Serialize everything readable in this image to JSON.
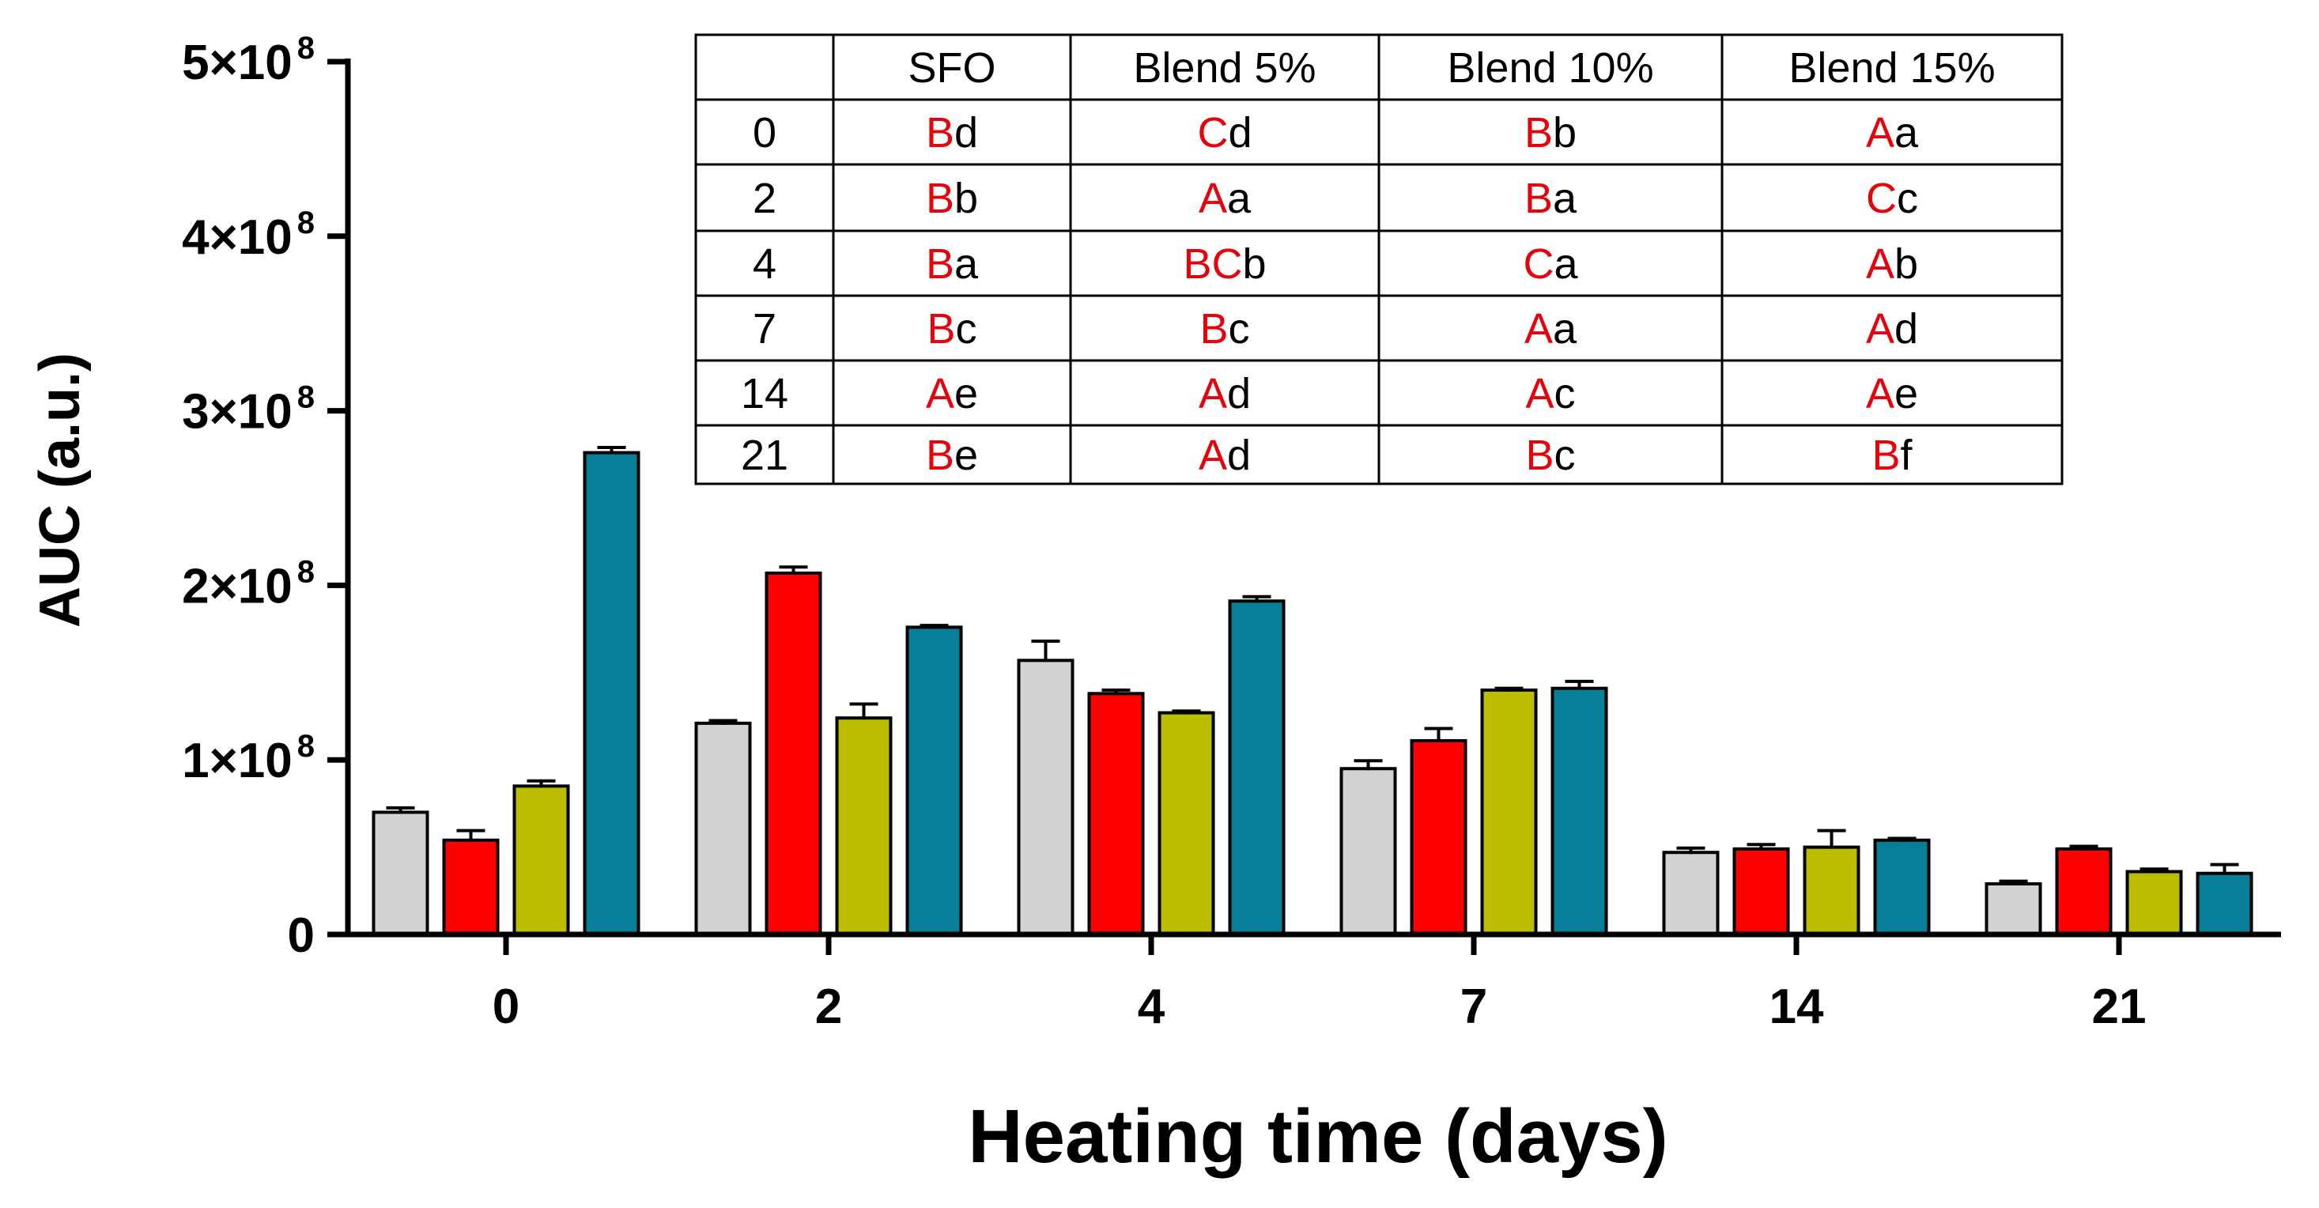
{
  "chart_data": {
    "type": "bar",
    "title": "",
    "xlabel": "Heating time (days)",
    "ylabel": "AUC (a.u.)",
    "ylim": [
      0,
      500000000
    ],
    "yticks": [
      {
        "value": 0,
        "base": "0",
        "exp": ""
      },
      {
        "value": 100000000,
        "base": "1×10",
        "exp": "8"
      },
      {
        "value": 200000000,
        "base": "2×10",
        "exp": "8"
      },
      {
        "value": 300000000,
        "base": "3×10",
        "exp": "8"
      },
      {
        "value": 400000000,
        "base": "4×10",
        "exp": "8"
      },
      {
        "value": 500000000,
        "base": "5×10",
        "exp": "8"
      }
    ],
    "categories": [
      "0",
      "2",
      "4",
      "7",
      "14",
      "21"
    ],
    "series": [
      {
        "name": "SFO",
        "color": "#d3d3d3",
        "values": [
          70000000,
          121000000,
          157000000,
          95000000,
          47000000,
          29000000
        ],
        "errors": [
          2500000,
          1500000,
          11000000,
          4500000,
          2500000,
          1500000
        ]
      },
      {
        "name": "Blend 5%",
        "color": "#ff0000",
        "values": [
          54000000,
          207000000,
          138000000,
          111000000,
          49000000,
          49000000
        ],
        "errors": [
          5500000,
          3500000,
          2000000,
          7000000,
          2500000,
          1500000
        ]
      },
      {
        "name": "Blend 10%",
        "color": "#bdbd00",
        "values": [
          85000000,
          124000000,
          127000000,
          140000000,
          50000000,
          36000000
        ],
        "errors": [
          3000000,
          8000000,
          1000000,
          1000000,
          9500000,
          1500000
        ]
      },
      {
        "name": "Blend 15%",
        "color": "#087f98",
        "values": [
          276000000,
          176000000,
          191000000,
          141000000,
          54000000,
          35000000
        ],
        "errors": [
          3000000,
          1000000,
          2500000,
          4000000,
          1000000,
          5000000
        ]
      }
    ],
    "table": {
      "header": [
        "",
        "SFO",
        "Blend 5%",
        "Blend 10%",
        "Blend 15%"
      ],
      "rows": [
        {
          "day": "0",
          "cells": [
            [
              "B",
              "d"
            ],
            [
              "C",
              "d"
            ],
            [
              "B",
              "b"
            ],
            [
              "A",
              "a"
            ]
          ]
        },
        {
          "day": "2",
          "cells": [
            [
              "B",
              "b"
            ],
            [
              "A",
              "a"
            ],
            [
              "B",
              "a"
            ],
            [
              "C",
              "c"
            ]
          ]
        },
        {
          "day": "4",
          "cells": [
            [
              "B",
              "a"
            ],
            [
              "BC",
              "b"
            ],
            [
              "C",
              "a"
            ],
            [
              "A",
              "b"
            ]
          ]
        },
        {
          "day": "7",
          "cells": [
            [
              "B",
              "c"
            ],
            [
              "B",
              "c"
            ],
            [
              "A",
              "a"
            ],
            [
              "A",
              "d"
            ]
          ]
        },
        {
          "day": "14",
          "cells": [
            [
              "A",
              "e"
            ],
            [
              "A",
              "d"
            ],
            [
              "A",
              "c"
            ],
            [
              "A",
              "e"
            ]
          ]
        },
        {
          "day": "21",
          "cells": [
            [
              "B",
              "e"
            ],
            [
              "A",
              "d"
            ],
            [
              "B",
              "c"
            ],
            [
              "B",
              "f"
            ]
          ]
        }
      ]
    }
  }
}
